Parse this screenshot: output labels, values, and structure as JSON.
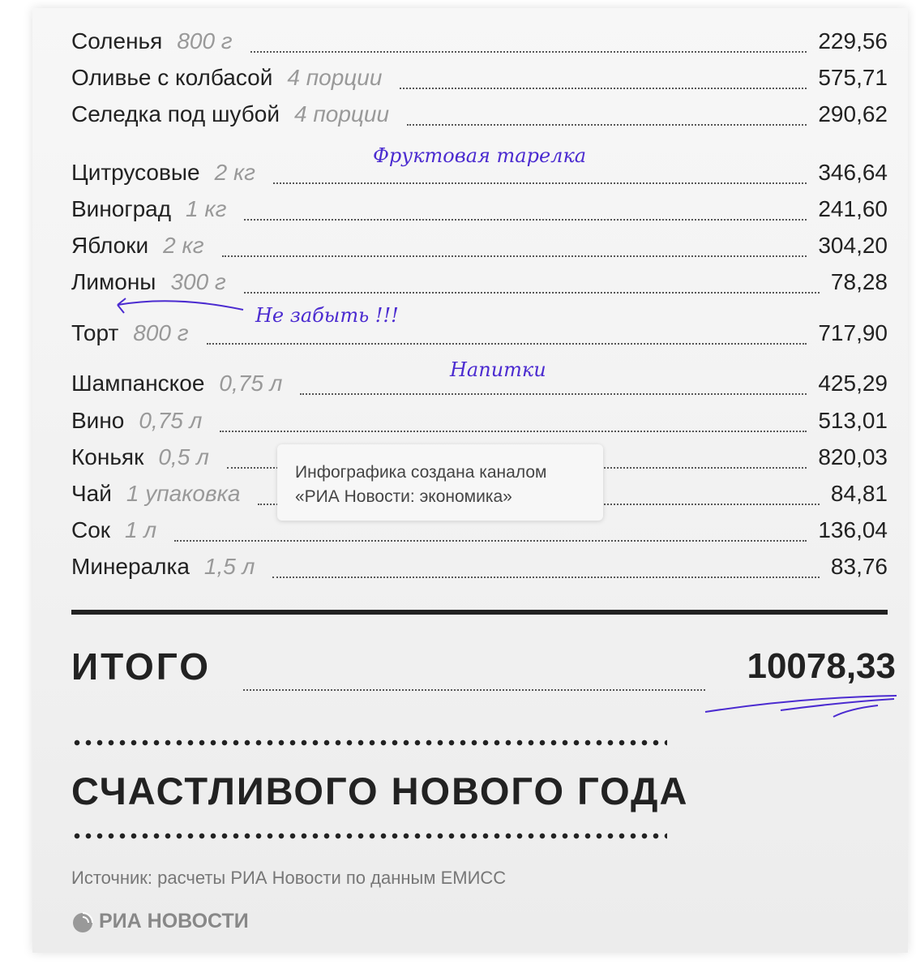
{
  "items": [
    {
      "name": "Соленья",
      "qty": "800 г",
      "price": "229,56"
    },
    {
      "name": "Оливье с колбасой",
      "qty": "4 порции",
      "price": "575,71"
    },
    {
      "name": "Селедка под шубой",
      "qty": "4 порции",
      "price": "290,62"
    },
    {
      "name": "Цитрусовые",
      "qty": "2 кг",
      "price": "346,64"
    },
    {
      "name": "Виноград",
      "qty": "1 кг",
      "price": "241,60"
    },
    {
      "name": "Яблоки",
      "qty": "2 кг",
      "price": "304,20"
    },
    {
      "name": "Лимоны",
      "qty": "300 г",
      "price": "78,28"
    },
    {
      "name": "Торт",
      "qty": "800 г",
      "price": "717,90"
    },
    {
      "name": "Шампанское",
      "qty": "0,75 л",
      "price": "425,29"
    },
    {
      "name": "Вино",
      "qty": "0,75 л",
      "price": "513,01"
    },
    {
      "name": "Коньяк",
      "qty": "0,5 л",
      "price": "820,03"
    },
    {
      "name": "Чай",
      "qty": "1 упаковка",
      "price": "84,81"
    },
    {
      "name": "Сок",
      "qty": "1 л",
      "price": "136,04"
    },
    {
      "name": "Минералка",
      "qty": "1,5 л",
      "price": "83,76"
    }
  ],
  "annotations": {
    "fruit": "Фруктовая тарелка",
    "cake": "Не забыть !!!",
    "drinks": "Напитки"
  },
  "note": {
    "line1": "Инфографика создана каналом",
    "line2": "«РИА Новости: экономика»"
  },
  "total": {
    "label": "ИТОГО",
    "value": "10078,33"
  },
  "greeting": "СЧАСТЛИВОГО НОВОГО ГОДА",
  "source": "Источник: расчеты РИА Новости по данным ЕМИСС",
  "logo": "РИА НОВОСТИ",
  "colors": {
    "annotation": "#4b2bd0",
    "text": "#222222"
  }
}
